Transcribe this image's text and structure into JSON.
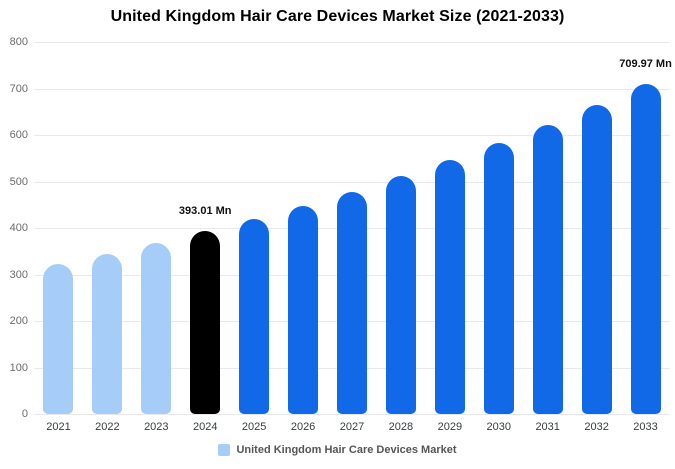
{
  "chart_data": {
    "type": "bar",
    "title": "United Kingdom Hair Care Devices Market Size (2021-2033)",
    "categories": [
      "2021",
      "2022",
      "2023",
      "2024",
      "2025",
      "2026",
      "2027",
      "2028",
      "2029",
      "2030",
      "2031",
      "2032",
      "2033"
    ],
    "values": [
      322.7,
      344.6,
      368.0,
      393.01,
      419.7,
      448.2,
      478.6,
      511.1,
      545.8,
      582.9,
      622.5,
      664.8,
      709.97
    ],
    "data_labels": [
      "",
      "",
      "",
      "393.01 Mn",
      "",
      "",
      "",
      "",
      "",
      "",
      "",
      "",
      "709.97 Mn"
    ],
    "bar_colors": [
      "#A6CDF8",
      "#A6CDF8",
      "#A6CDF8",
      "#000000",
      "#1169E8",
      "#1169E8",
      "#1169E8",
      "#1169E8",
      "#1169E8",
      "#1169E8",
      "#1169E8",
      "#1169E8",
      "#1169E8"
    ],
    "ylim": [
      0,
      800
    ],
    "yticks": [
      0,
      100,
      200,
      300,
      400,
      500,
      600,
      700,
      800
    ],
    "grid": true,
    "xlabel": "",
    "ylabel": "",
    "legend_position": "bottom",
    "legend": {
      "label": "United Kingdom Hair Care Devices Market",
      "marker_color": "#A6CDF8"
    }
  }
}
